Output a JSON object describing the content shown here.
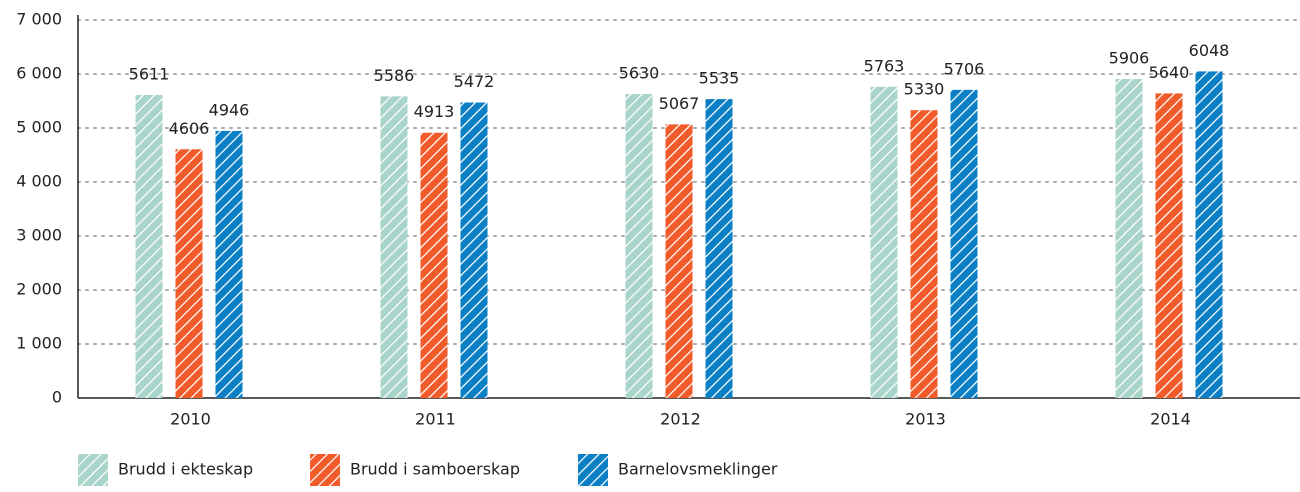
{
  "chart_data": {
    "type": "bar",
    "categories": [
      "2010",
      "2011",
      "2012",
      "2013",
      "2014"
    ],
    "series": [
      {
        "name": "Brudd i ekteskap",
        "color": "#a9d4c9",
        "values": [
          5611,
          5586,
          5630,
          5763,
          5906
        ]
      },
      {
        "name": "Brudd i samboerskap",
        "color": "#f15a29",
        "values": [
          4606,
          4913,
          5067,
          5330,
          5640
        ]
      },
      {
        "name": "Barnelovsmeklinger",
        "color": "#0b7fc4",
        "values": [
          4946,
          5472,
          5535,
          5706,
          6048
        ]
      }
    ],
    "ylim": [
      0,
      7000
    ],
    "yticks": [
      0,
      {
        "value": 1000,
        "label": "1 000"
      },
      {
        "value": 2000,
        "label": "2 000"
      },
      {
        "value": 3000,
        "label": "3 000"
      },
      {
        "value": 4000,
        "label": "4 000"
      },
      {
        "value": 5000,
        "label": "5 000"
      },
      {
        "value": 6000,
        "label": "6 000"
      },
      {
        "value": 7000,
        "label": "7 000"
      }
    ],
    "grid": true,
    "legend": "bottom-left"
  }
}
